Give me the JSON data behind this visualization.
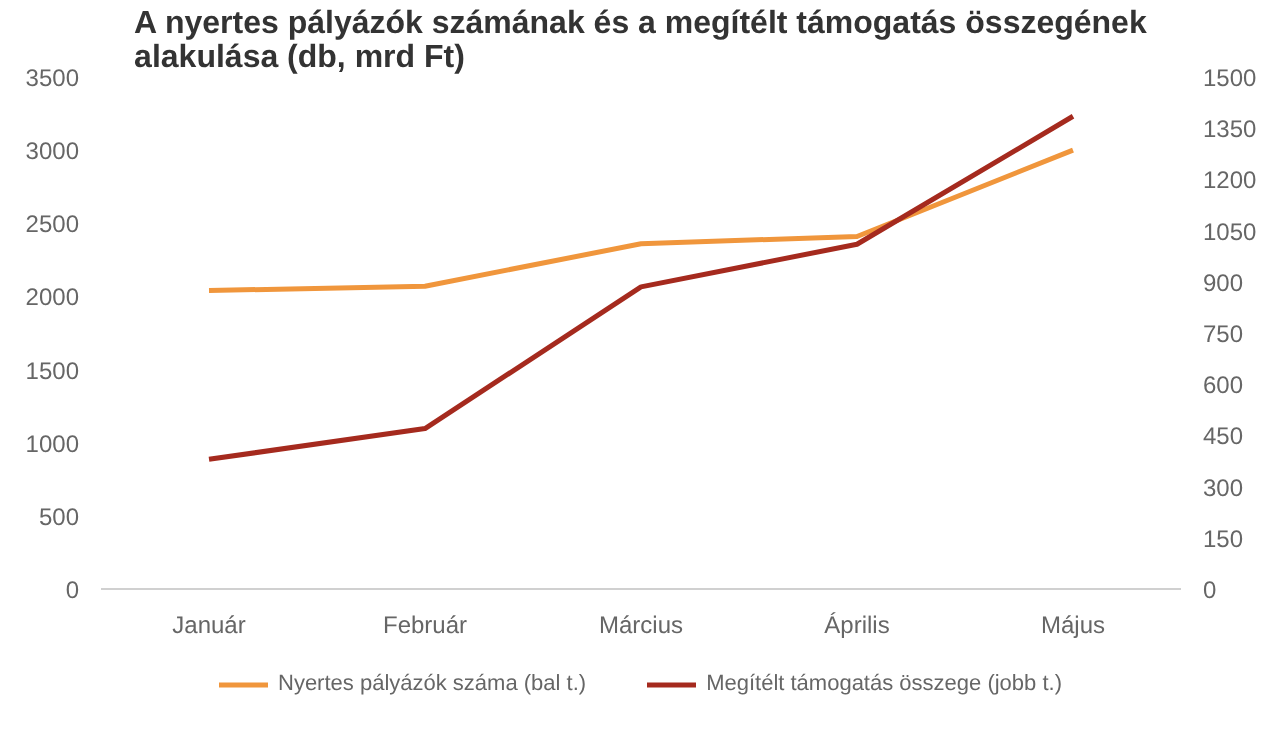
{
  "chart_data": {
    "type": "line",
    "title": "A nyertes pályázók számának és a megítélt támogatás összegének alakulása (db, mrd Ft)",
    "categories": [
      "Január",
      "Február",
      "Március",
      "Április",
      "Május"
    ],
    "series": [
      {
        "name": "Nyertes pályázók száma (bal t.)",
        "color": "#f0963c",
        "values": [
          2040,
          2070,
          2360,
          2410,
          3000
        ]
      },
      {
        "name": "Megítélt támogatás összege (jobb t.)",
        "color": "#a52a1e",
        "values": [
          380,
          470,
          885,
          1010,
          1385
        ],
        "axis": "y2"
      }
    ],
    "ylim": [
      0,
      3500
    ],
    "yticks": [
      0,
      500,
      1000,
      1500,
      2000,
      2500,
      3000,
      3500
    ],
    "y2lim": [
      0,
      1500
    ],
    "y2ticks": [
      0,
      150,
      300,
      450,
      600,
      750,
      900,
      1050,
      1200,
      1350,
      1500
    ],
    "legend": "bottom",
    "grid": false,
    "marker": "none",
    "line_style": "solid"
  }
}
